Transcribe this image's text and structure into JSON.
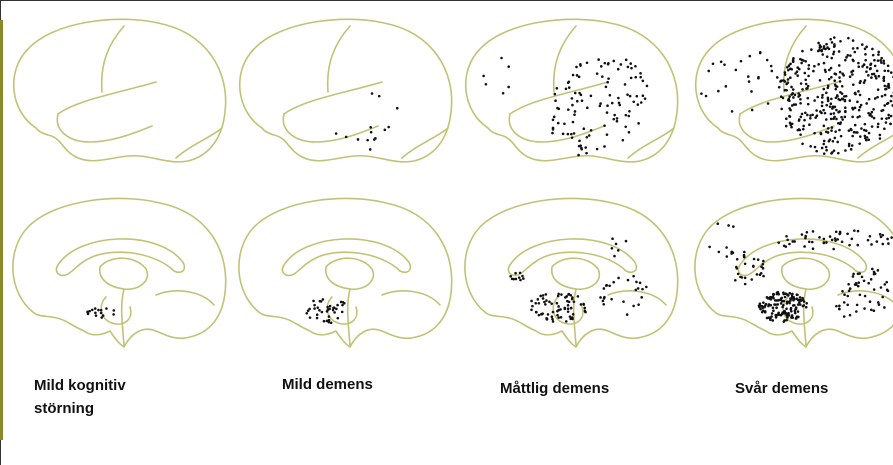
{
  "captions": [
    "Mild kognitiv störning",
    "Mild demens",
    "Måttlig demens",
    "Svår demens"
  ]
}
